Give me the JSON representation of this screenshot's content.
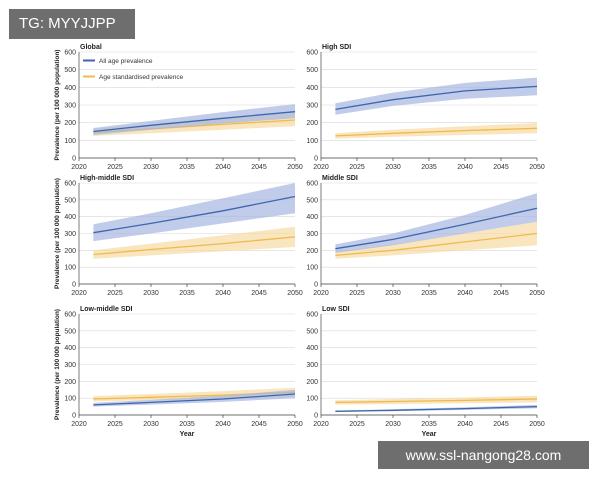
{
  "watermarks": {
    "top_left": "TG: MYYJJPP",
    "bottom_right": "www.ssl-nangong28.com"
  },
  "colors": {
    "all_age_line": "#3d66ad",
    "all_age_band": "#a5b6e0",
    "age_std_line": "#f0b94e",
    "age_std_band": "#f7dca3",
    "axis": "#444444",
    "grid": "#d8d8d8"
  },
  "chart_data": [
    {
      "type": "line",
      "title": "Global",
      "xlabel": "",
      "ylabel": "Prevalence (per 100 000 population)",
      "ylim": [
        0,
        600
      ],
      "xlim": [
        2020,
        2050
      ],
      "legend": [
        "All age prevalence",
        "Age standardised prevalence"
      ],
      "series": [
        {
          "name": "All age prevalence",
          "x": [
            2022,
            2030,
            2040,
            2050
          ],
          "values": [
            150,
            185,
            225,
            262
          ],
          "lower": [
            130,
            160,
            195,
            225
          ],
          "upper": [
            170,
            210,
            260,
            305
          ]
        },
        {
          "name": "Age standardised prevalence",
          "x": [
            2022,
            2030,
            2040,
            2050
          ],
          "values": [
            145,
            165,
            190,
            215
          ],
          "lower": [
            125,
            140,
            160,
            180
          ],
          "upper": [
            165,
            190,
            220,
            255
          ]
        }
      ]
    },
    {
      "type": "line",
      "title": "High SDI",
      "xlabel": "",
      "ylabel": "",
      "ylim": [
        0,
        600
      ],
      "xlim": [
        2020,
        2050
      ],
      "series": [
        {
          "name": "All age prevalence",
          "x": [
            2022,
            2030,
            2040,
            2050
          ],
          "values": [
            275,
            330,
            380,
            405
          ],
          "lower": [
            245,
            295,
            335,
            355
          ],
          "upper": [
            310,
            370,
            425,
            455
          ]
        },
        {
          "name": "Age standardised prevalence",
          "x": [
            2022,
            2030,
            2040,
            2050
          ],
          "values": [
            125,
            140,
            155,
            168
          ],
          "lower": [
            110,
            120,
            130,
            140
          ],
          "upper": [
            140,
            160,
            180,
            198
          ]
        }
      ]
    },
    {
      "type": "line",
      "title": "High-middle SDI",
      "xlabel": "",
      "ylabel": "Prevalence (per 100 000 population)",
      "ylim": [
        0,
        600
      ],
      "xlim": [
        2020,
        2050
      ],
      "series": [
        {
          "name": "All age prevalence",
          "x": [
            2022,
            2030,
            2040,
            2050
          ],
          "values": [
            305,
            360,
            435,
            520
          ],
          "lower": [
            255,
            300,
            360,
            420
          ],
          "upper": [
            355,
            420,
            510,
            610
          ]
        },
        {
          "name": "Age standardised prevalence",
          "x": [
            2022,
            2030,
            2040,
            2050
          ],
          "values": [
            175,
            205,
            240,
            280
          ],
          "lower": [
            150,
            170,
            195,
            220
          ],
          "upper": [
            200,
            240,
            290,
            340
          ]
        }
      ]
    },
    {
      "type": "line",
      "title": "Middle SDI",
      "xlabel": "",
      "ylabel": "",
      "ylim": [
        0,
        600
      ],
      "xlim": [
        2020,
        2050
      ],
      "series": [
        {
          "name": "All age prevalence",
          "x": [
            2022,
            2030,
            2040,
            2050
          ],
          "values": [
            210,
            265,
            355,
            450
          ],
          "lower": [
            185,
            230,
            300,
            370
          ],
          "upper": [
            235,
            300,
            410,
            540
          ]
        },
        {
          "name": "Age standardised prevalence",
          "x": [
            2022,
            2030,
            2040,
            2050
          ],
          "values": [
            170,
            200,
            250,
            300
          ],
          "lower": [
            150,
            170,
            200,
            230
          ],
          "upper": [
            195,
            235,
            300,
            370
          ]
        }
      ]
    },
    {
      "type": "line",
      "title": "Low-middle SDI",
      "xlabel": "Year",
      "ylabel": "Prevalence (per 100 000 population)",
      "ylim": [
        0,
        600
      ],
      "xlim": [
        2020,
        2050
      ],
      "series": [
        {
          "name": "All age prevalence",
          "x": [
            2022,
            2030,
            2040,
            2050
          ],
          "values": [
            60,
            75,
            95,
            125
          ],
          "lower": [
            50,
            62,
            78,
            100
          ],
          "upper": [
            72,
            90,
            115,
            150
          ]
        },
        {
          "name": "Age standardised prevalence",
          "x": [
            2022,
            2030,
            2040,
            2050
          ],
          "values": [
            95,
            105,
            118,
            135
          ],
          "lower": [
            80,
            88,
            98,
            110
          ],
          "upper": [
            112,
            125,
            142,
            162
          ]
        }
      ]
    },
    {
      "type": "line",
      "title": "Low SDI",
      "xlabel": "Year",
      "ylabel": "",
      "ylim": [
        0,
        600
      ],
      "xlim": [
        2020,
        2050
      ],
      "series": [
        {
          "name": "All age prevalence",
          "x": [
            2022,
            2030,
            2040,
            2050
          ],
          "values": [
            22,
            28,
            38,
            50
          ],
          "lower": [
            18,
            22,
            30,
            40
          ],
          "upper": [
            26,
            34,
            46,
            60
          ]
        },
        {
          "name": "Age standardised prevalence",
          "x": [
            2022,
            2030,
            2040,
            2050
          ],
          "values": [
            75,
            80,
            87,
            95
          ],
          "lower": [
            62,
            65,
            70,
            75
          ],
          "upper": [
            88,
            95,
            104,
            115
          ]
        }
      ]
    }
  ],
  "ticks": {
    "y": [
      "0",
      "100",
      "200",
      "300",
      "400",
      "500",
      "600"
    ],
    "x": [
      "2020",
      "2025",
      "2030",
      "2035",
      "2040",
      "2045",
      "2050"
    ]
  }
}
